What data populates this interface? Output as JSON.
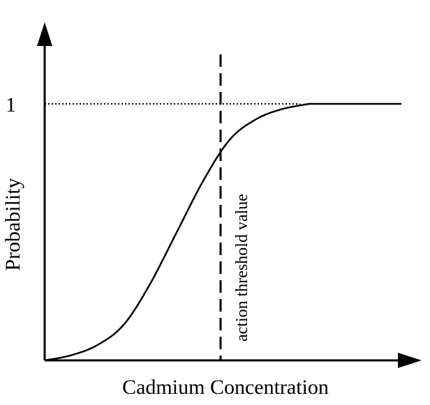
{
  "chart_data": {
    "type": "line",
    "xlabel": "Cadmium Concentration",
    "ylabel": "Probability",
    "y_ticks": [
      "1"
    ],
    "x_ticks": [],
    "grid": false,
    "series": [
      {
        "x": [
          0,
          1,
          2,
          3,
          4,
          5,
          6,
          7,
          8,
          9,
          10
        ],
        "values": [
          0.0,
          0.02,
          0.06,
          0.14,
          0.3,
          0.5,
          0.7,
          0.86,
          0.94,
          0.98,
          1.0
        ]
      }
    ],
    "reference_lines": [
      {
        "orientation": "vertical",
        "style": "dashed",
        "label": "action threshold value"
      },
      {
        "orientation": "horizontal",
        "value": 1,
        "style": "dotted"
      }
    ]
  },
  "colors": {
    "ink": "#000000",
    "background": "#ffffff"
  }
}
